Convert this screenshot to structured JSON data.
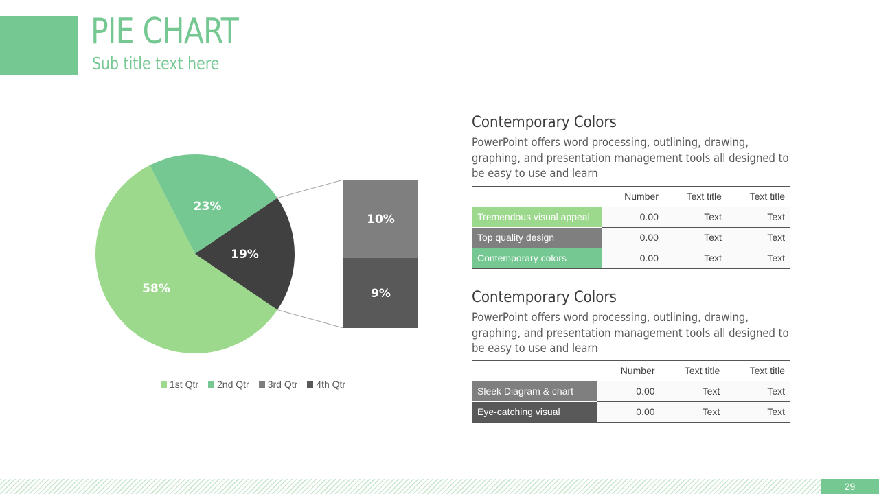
{
  "slide": {
    "title": "PIE CHART",
    "subtitle": "Sub title text here",
    "page_number": "29",
    "accent_color": "#76c893"
  },
  "chart_data": {
    "type": "pie",
    "categories": [
      "1st Qtr",
      "2nd Qtr",
      "3rd Qtr",
      "4th Qtr"
    ],
    "values": [
      58,
      23,
      19,
      19
    ],
    "value_labels": [
      "58%",
      "23%",
      "19%",
      ""
    ],
    "colors": [
      "#9dd98c",
      "#76c893",
      "#7f7f7f",
      "#595959"
    ],
    "main_slice_color_3": "#404040",
    "breakdown": {
      "of_category": "3rd Qtr",
      "parts": [
        {
          "label": "10%",
          "value": 10,
          "color": "#7f7f7f"
        },
        {
          "label": "9%",
          "value": 9,
          "color": "#595959"
        }
      ]
    },
    "legend_position": "bottom"
  },
  "sections": [
    {
      "heading": "Contemporary Colors",
      "body": "PowerPoint offers word processing, outlining, drawing, graphing, and presentation management tools all designed to be easy to use and learn",
      "table": {
        "columns": [
          "",
          "Number",
          "Text title",
          "Text title"
        ],
        "rows": [
          {
            "label": "Tremendous visual appeal",
            "color": "#9dd98c",
            "cells": [
              "0.00",
              "Text",
              "Text"
            ]
          },
          {
            "label": "Top quality design",
            "color": "#7f7f7f",
            "cells": [
              "0.00",
              "Text",
              "Text"
            ]
          },
          {
            "label": "Contemporary colors",
            "color": "#76c893",
            "cells": [
              "0.00",
              "Text",
              "Text"
            ]
          }
        ]
      }
    },
    {
      "heading": "Contemporary Colors",
      "body": "PowerPoint offers word processing, outlining, drawing, graphing, and presentation management tools all designed to be easy to use and learn",
      "table": {
        "columns": [
          "",
          "Number",
          "Text title",
          "Text title"
        ],
        "rows": [
          {
            "label": "Sleek Diagram & chart",
            "color": "#7f7f7f",
            "cells": [
              "0.00",
              "Text",
              "Text"
            ]
          },
          {
            "label": "Eye-catching visual",
            "color": "#595959",
            "cells": [
              "0.00",
              "Text",
              "Text"
            ]
          }
        ]
      }
    }
  ]
}
